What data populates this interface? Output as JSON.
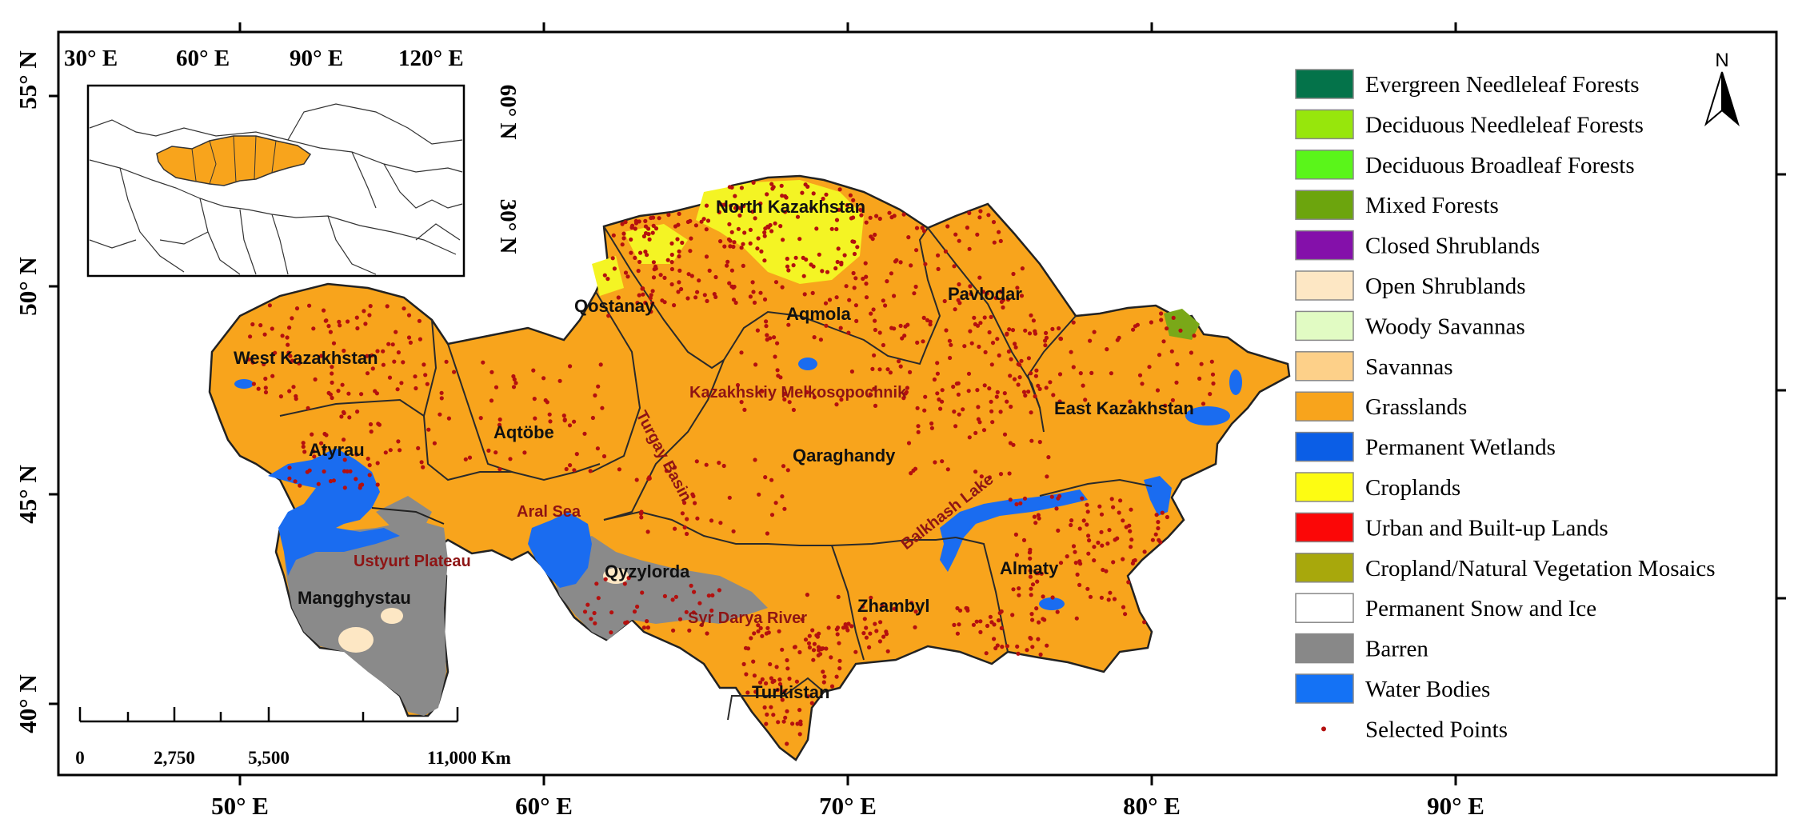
{
  "map": {
    "top_lon_ticks": [
      "30° E",
      "60° E",
      "90° E",
      "120° E"
    ],
    "bottom_lon_ticks": [
      "50° E",
      "60° E",
      "70° E",
      "80° E",
      "90° E"
    ],
    "lat_ticks": [
      "55° N",
      "50° N",
      "45° N",
      "40° N"
    ],
    "inset_lat_ticks": [
      "60° N",
      "30° N"
    ],
    "north_label": "N",
    "scale_bar": {
      "labels": [
        "0",
        "2,750",
        "5,500",
        "11,000 Km"
      ]
    },
    "regions": [
      "North Kazakhstan",
      "Qostanay",
      "Aqmola",
      "Pavlodar",
      "West Kazakhstan",
      "Aqtöbe",
      "Atyrau",
      "Qaraghandy",
      "East Kazakhstan",
      "Qyzylorda",
      "Mangghystau",
      "Almaty",
      "Zhambyl",
      "Turkistan"
    ],
    "features": [
      "Kazakhskiy Melkosopochnik",
      "Turgay Basin",
      "Aral Sea",
      "Balkhash Lake",
      "Ustyurt Plateau",
      "Syr Darya River"
    ],
    "colors": {
      "grassland": "#f8a41c",
      "water": "#1f6fe8",
      "barren": "#8c8c8c",
      "point": "#b4100f",
      "region_label": "#111111",
      "feature_label": "#8e1414"
    }
  },
  "legend": [
    {
      "label": "Evergreen Needleleaf Forests",
      "color": "#04734a"
    },
    {
      "label": "Deciduous Needleleaf Forests",
      "color": "#97e60c"
    },
    {
      "label": "Deciduous Broadleaf Forests",
      "color": "#5af51a"
    },
    {
      "label": "Mixed Forests",
      "color": "#6ca50d"
    },
    {
      "label": "Closed Shrublands",
      "color": "#8410aa"
    },
    {
      "label": "Open Shrublands",
      "color": "#fde7c4"
    },
    {
      "label": "Woody Savannas",
      "color": "#e1fbc3"
    },
    {
      "label": "Savannas",
      "color": "#fdd089"
    },
    {
      "label": "Grasslands",
      "color": "#f8a41c"
    },
    {
      "label": "Permanent Wetlands",
      "color": "#0b5ee6"
    },
    {
      "label": "Croplands",
      "color": "#fdfc12"
    },
    {
      "label": "Urban and Built-up Lands",
      "color": "#fb0707"
    },
    {
      "label": "Cropland/Natural Vegetation Mosaics",
      "color": "#a8a80c"
    },
    {
      "label": "Permanent Snow and Ice",
      "color": "#ffffff"
    },
    {
      "label": "Barren",
      "color": "#888888"
    },
    {
      "label": "Water Bodies",
      "color": "#1472f5"
    },
    {
      "label": "Selected Points",
      "color": "#b4100f"
    }
  ]
}
